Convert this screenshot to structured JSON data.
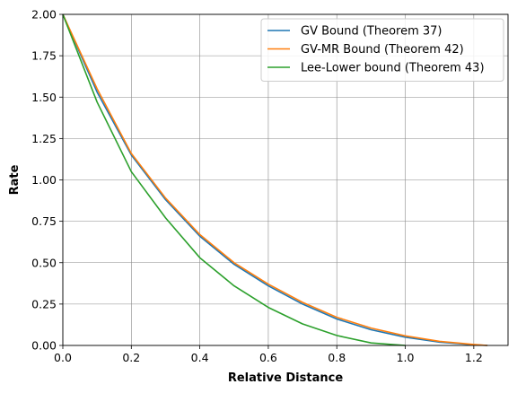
{
  "chart_data": {
    "type": "line",
    "title": "",
    "xlabel": "Relative Distance",
    "ylabel": "Rate",
    "xlim": [
      0,
      1.3
    ],
    "ylim": [
      0,
      2
    ],
    "xticks": [
      0.0,
      0.2,
      0.4,
      0.6,
      0.8,
      1.0,
      1.2
    ],
    "xtick_labels": [
      "0.0",
      "0.2",
      "0.4",
      "0.6",
      "0.8",
      "1.0",
      "1.2"
    ],
    "yticks": [
      0.0,
      0.25,
      0.5,
      0.75,
      1.0,
      1.25,
      1.5,
      1.75,
      2.0
    ],
    "ytick_labels": [
      "0.00",
      "0.25",
      "0.50",
      "0.75",
      "1.00",
      "1.25",
      "1.50",
      "1.75",
      "2.00"
    ],
    "grid": true,
    "legend_position": "top-right",
    "series": [
      {
        "name": "GV Bound (Theorem 37)",
        "color": "#1f77b4",
        "x": [
          0,
          0.1,
          0.2,
          0.3,
          0.4,
          0.5,
          0.6,
          0.7,
          0.8,
          0.9,
          1.0,
          1.1,
          1.2,
          1.24
        ],
        "y": [
          2.0,
          1.53,
          1.15,
          0.88,
          0.66,
          0.49,
          0.36,
          0.25,
          0.16,
          0.095,
          0.05,
          0.02,
          0.004,
          0.0
        ]
      },
      {
        "name": "GV-MR Bound (Theorem 42)",
        "color": "#ff7f0e",
        "x": [
          0,
          0.1,
          0.2,
          0.3,
          0.4,
          0.5,
          0.6,
          0.7,
          0.8,
          0.9,
          1.0,
          1.1,
          1.2,
          1.24
        ],
        "y": [
          2.0,
          1.55,
          1.16,
          0.89,
          0.67,
          0.5,
          0.37,
          0.26,
          0.17,
          0.105,
          0.058,
          0.025,
          0.006,
          0.0
        ]
      },
      {
        "name": "Lee-Lower bound (Theorem 43)",
        "color": "#2ca02c",
        "x": [
          0,
          0.1,
          0.2,
          0.3,
          0.4,
          0.5,
          0.6,
          0.7,
          0.8,
          0.9,
          1.0
        ],
        "y": [
          2.0,
          1.47,
          1.05,
          0.77,
          0.53,
          0.36,
          0.23,
          0.13,
          0.06,
          0.015,
          0.0
        ]
      }
    ]
  }
}
